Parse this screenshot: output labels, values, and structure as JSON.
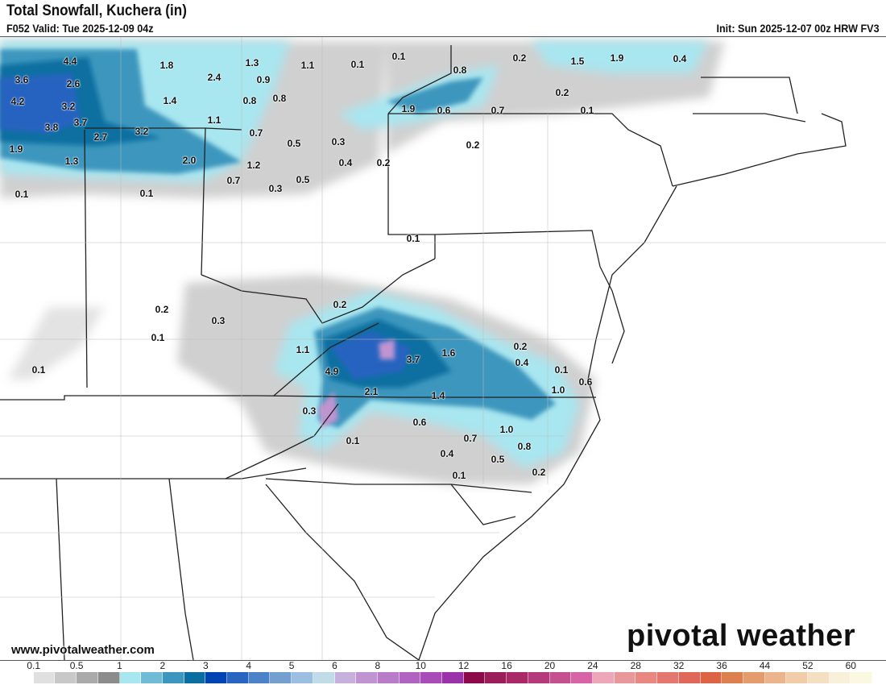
{
  "header": {
    "title": "Total Snowfall, Kuchera (in)",
    "valid": "F052 Valid: Tue 2025-12-09 04z",
    "init": "Init: Sun 2025-12-07 00z HRW FV3"
  },
  "map": {
    "point_values": [
      "4.4",
      "1.8",
      "1.3",
      "1.1",
      "0.1",
      "0.1",
      "0.2",
      "1.5",
      "1.9",
      "0.4",
      "3.6",
      "2.6",
      "2.4",
      "0.9",
      "0.8",
      "4.2",
      "3.2",
      "1.4",
      "0.8",
      "0.8",
      "0.2",
      "1.9",
      "0.6",
      "0.7",
      "0.1",
      "3.8",
      "3.7",
      "3.2",
      "1.1",
      "0.7",
      "2.7",
      "0.5",
      "0.3",
      "0.2",
      "1.9",
      "1.3",
      "2.0",
      "1.2",
      "0.4",
      "0.2",
      "0.7",
      "0.5",
      "0.3",
      "0.1",
      "0.1",
      "0.1",
      "0.2",
      "0.2",
      "0.3",
      "0.1",
      "0.2",
      "1.1",
      "1.6",
      "3.7",
      "0.4",
      "0.1",
      "4.9",
      "0.1",
      "0.6",
      "1.0",
      "2.1",
      "1.4",
      "0.3",
      "0.6",
      "1.0",
      "0.1",
      "0.7",
      "0.8",
      "0.4",
      "0.5",
      "0.2",
      "0.1"
    ]
  },
  "footer": {
    "website": "www.pivotalweather.com",
    "logo_text": "pivotal weather"
  },
  "colorbar": {
    "labels": [
      "0.1",
      "0.5",
      "1",
      "2",
      "3",
      "4",
      "5",
      "6",
      "8",
      "10",
      "12",
      "16",
      "20",
      "24",
      "28",
      "32",
      "36",
      "44",
      "52",
      "60"
    ],
    "colors": [
      "#ffffff",
      "#e0e0e0",
      "#c8c8c8",
      "#aaaaaa",
      "#8c8c8c",
      "#a8e6f0",
      "#70bcd6",
      "#3c96bd",
      "#0a6fa0",
      "#0044b4",
      "#2864c0",
      "#4c82c8",
      "#74a0d0",
      "#9cbee0",
      "#c0dce8",
      "#c8b0dc",
      "#c094d0",
      "#b87cc8",
      "#b064c0",
      "#a84cb8",
      "#9a32aa",
      "#8a0a4a",
      "#9a1e5a",
      "#a82868",
      "#b43a7a",
      "#c45090",
      "#d864a8",
      "#eca8b8",
      "#e89898",
      "#e88880",
      "#e47870",
      "#e06858",
      "#dc6444",
      "#dc8050",
      "#e49c6c",
      "#ecb48c",
      "#f0cca8",
      "#f4e0c0",
      "#f8f0d8",
      "#fbf8e0"
    ]
  }
}
